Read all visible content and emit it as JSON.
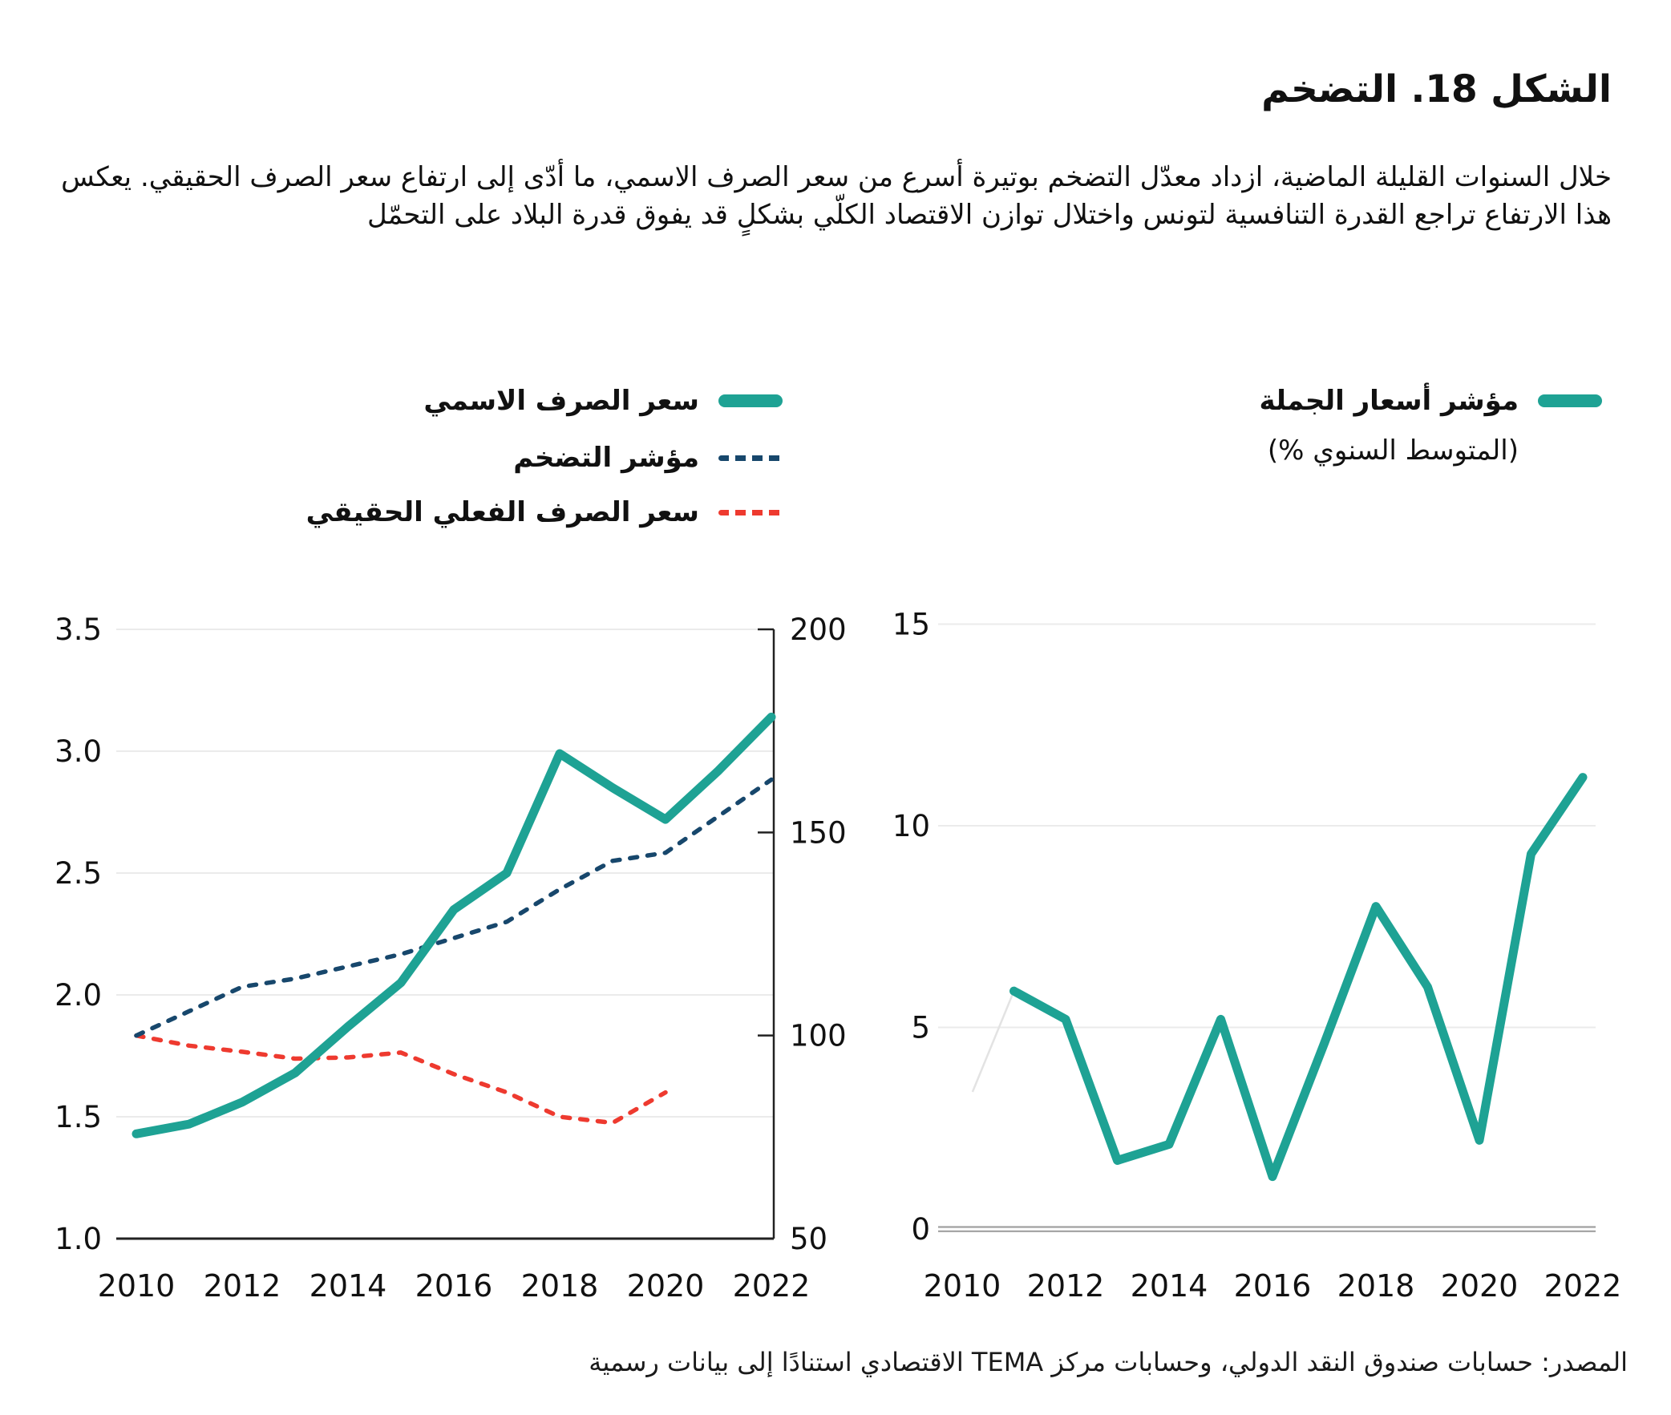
{
  "figure": {
    "title": "الشكل 18. التضخم",
    "description": "خلال السنوات القليلة الماضية، ازداد معدّل التضخم بوتيرة أسرع من سعر الصرف الاسمي، ما أدّى إلى ارتفاع سعر الصرف الحقيقي. يعكس هذا الارتفاع تراجع القدرة التنافسية لتونس واختلال توازن الاقتصاد الكلّي بشكلٍ قد يفوق قدرة البلاد على التحمّل",
    "source": "المصدر: حسابات صندوق النقد الدولي،  وحسابات مركز TEMA الاقتصادي استنادًا إلى بيانات رسمية"
  },
  "colors": {
    "teal": "#1ea294",
    "navy": "#17476c",
    "red": "#ee3a2f",
    "grid": "#ebebeb",
    "axis": "#222222",
    "text": "#111111",
    "baseline_gray": "#a0a0a0",
    "faint": "#e3e3e3"
  },
  "legend_left": {
    "items": [
      {
        "label": "سعر الصرف الاسمي",
        "style": "solid-teal"
      },
      {
        "label": "مؤشر التضخم",
        "style": "dashed-navy"
      },
      {
        "label": "سعر الصرف الفعلي الحقيقي",
        "style": "dashed-red"
      }
    ]
  },
  "legend_right": {
    "label": "مؤشر أسعار الجملة",
    "sublabel": "(المتوسط السنوي %)",
    "style": "solid-teal"
  },
  "chart_data": [
    {
      "type": "line",
      "name": "exchange-rate-and-inflation",
      "x_years": [
        2010,
        2011,
        2012,
        2013,
        2014,
        2015,
        2016,
        2017,
        2018,
        2019,
        2020,
        2021,
        2022
      ],
      "x_tick_labels": [
        "2010",
        "2012",
        "2014",
        "2016",
        "2018",
        "2020",
        "2022"
      ],
      "y_left_axis": {
        "min": 1.0,
        "max": 3.5,
        "tick_labels": [
          "1.0",
          "1.5",
          "2.0",
          "2.5",
          "3.0",
          "3.5"
        ]
      },
      "y_right_axis": {
        "min": 50,
        "max": 200,
        "tick_labels": [
          "50",
          "100",
          "150",
          "200"
        ]
      },
      "grid": true,
      "series": [
        {
          "key": "nominal-exchange-rate-line",
          "name": "سعر الصرف الاسمي",
          "axis": "left",
          "line": "solid",
          "color_key": "teal",
          "values": [
            1.43,
            1.47,
            1.56,
            1.68,
            1.87,
            2.05,
            2.35,
            2.5,
            2.99,
            2.85,
            2.72,
            2.92,
            3.14
          ]
        },
        {
          "key": "inflation-index-line",
          "name": "مؤشر التضخم",
          "axis": "right",
          "line": "dashed",
          "color_key": "navy",
          "values": [
            100,
            106,
            112,
            114,
            117,
            120,
            124,
            128,
            136,
            143,
            145,
            154,
            163
          ]
        },
        {
          "key": "real-effective-exchange-rate-line",
          "name": "سعر الصرف الفعلي الحقيقي",
          "axis": "right",
          "line": "dashed",
          "color_key": "red",
          "values": [
            100,
            97.5,
            96,
            94.3,
            94.6,
            95.8,
            90.5,
            86,
            80,
            78.5,
            86
          ]
        }
      ]
    },
    {
      "type": "line",
      "name": "wholesale-price-index",
      "x_tick_labels": [
        "2010",
        "2012",
        "2014",
        "2016",
        "2018",
        "2020",
        "2022"
      ],
      "y_axis": {
        "min": 0,
        "max": 15,
        "tick_labels": [
          "0",
          "5",
          "10",
          "15"
        ]
      },
      "grid": true,
      "series": [
        {
          "key": "wholesale-price-index-line",
          "name": "مؤشر أسعار الجملة",
          "line": "solid",
          "color_key": "teal",
          "start_year": 2011,
          "values": [
            5.9,
            5.2,
            1.7,
            2.1,
            5.2,
            1.3,
            4.6,
            8.0,
            6.0,
            2.2,
            9.3,
            11.2
          ]
        }
      ],
      "lead_in_segment": {
        "points": [
          [
            2010.2,
            3.4
          ],
          [
            2011,
            5.9
          ]
        ],
        "color_key": "faint"
      }
    }
  ]
}
